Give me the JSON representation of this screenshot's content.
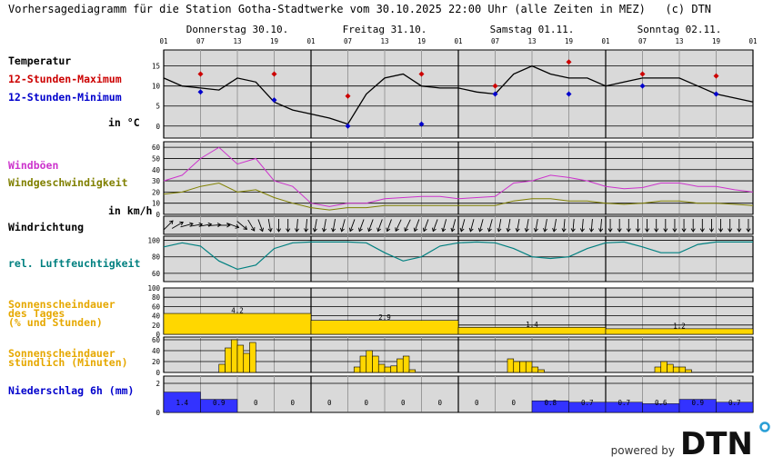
{
  "header": {
    "title": "Vorhersagediagramm für die Station Gotha-Stadtwerke vom 30.10.2025 22:00 Uhr (alle Zeiten in MEZ)   (c) DTN"
  },
  "days": [
    "Donnerstag 30.10.",
    "Freitag 31.10.",
    "Samstag 01.11.",
    "Sonntag 02.11."
  ],
  "hour_ticks": [
    "01",
    "07",
    "13",
    "19",
    "01",
    "07",
    "13",
    "19",
    "01",
    "07",
    "13",
    "19",
    "01",
    "07",
    "13",
    "19",
    "01"
  ],
  "labels": {
    "temperature": "Temperatur",
    "tmax": "12-Stunden-Maximum",
    "tmin": "12-Stunden-Minimum",
    "temp_unit": "in °C",
    "gusts": "Windböen",
    "windspeed": "Windgeschwindigkeit",
    "wind_unit": "in km/h",
    "winddir": "Windrichtung",
    "humidity": "rel. Luftfeuchtigkeit",
    "sun_day_1": "Sonnenscheindauer",
    "sun_day_2": "des Tages",
    "sun_day_3": "(% und Stunden)",
    "sun_hour_1": "Sonnenscheindauer",
    "sun_hour_2": "stündlich (Minuten)",
    "precip": "Niederschlag 6h (mm)"
  },
  "colors": {
    "plot_bg": "#d9d9d9",
    "temp": "#000000",
    "tmax": "#cc0000",
    "tmin": "#0000cc",
    "gust": "#cc33cc",
    "wind": "#808000",
    "humidity": "#008080",
    "sun": "#ffd700",
    "sun_label": "#e6a800",
    "precip": "#3333ff"
  },
  "chart_data": {
    "type": "line",
    "temperature": {
      "ylim": [
        -3,
        19
      ],
      "yticks": [
        0,
        5,
        10,
        15
      ],
      "x_hours": [
        0,
        3,
        6,
        9,
        12,
        15,
        18,
        21,
        24,
        27,
        30,
        33,
        36,
        39,
        42,
        45,
        48,
        51,
        54,
        57,
        60,
        63,
        66,
        69,
        72,
        75,
        78,
        81,
        84,
        87,
        90,
        93,
        96
      ],
      "values": [
        12,
        10,
        9.5,
        9,
        12,
        11,
        6,
        4,
        3,
        2,
        0.5,
        8,
        12,
        13,
        10,
        9.5,
        9.5,
        8.5,
        8,
        13,
        15,
        13,
        12,
        12,
        10,
        11,
        12,
        12,
        12,
        10,
        8,
        7,
        6
      ],
      "max_points": [
        {
          "h": 6,
          "v": 13
        },
        {
          "h": 18,
          "v": 13
        },
        {
          "h": 30,
          "v": 7.5
        },
        {
          "h": 42,
          "v": 13
        },
        {
          "h": 54,
          "v": 10
        },
        {
          "h": 66,
          "v": 16
        },
        {
          "h": 78,
          "v": 13
        },
        {
          "h": 90,
          "v": 12.5
        }
      ],
      "min_points": [
        {
          "h": 6,
          "v": 8.5
        },
        {
          "h": 18,
          "v": 6.5
        },
        {
          "h": 30,
          "v": 0
        },
        {
          "h": 42,
          "v": 0.5
        },
        {
          "h": 54,
          "v": 8
        },
        {
          "h": 66,
          "v": 8
        },
        {
          "h": 78,
          "v": 10
        },
        {
          "h": 90,
          "v": 8
        }
      ]
    },
    "wind": {
      "ylim": [
        0,
        65
      ],
      "yticks": [
        0,
        10,
        20,
        30,
        40,
        50,
        60
      ],
      "x_hours": [
        0,
        3,
        6,
        9,
        12,
        15,
        18,
        21,
        24,
        27,
        30,
        33,
        36,
        39,
        42,
        45,
        48,
        51,
        54,
        57,
        60,
        63,
        66,
        69,
        72,
        75,
        78,
        81,
        84,
        87,
        90,
        93,
        96
      ],
      "gusts": [
        30,
        35,
        50,
        60,
        45,
        50,
        30,
        25,
        10,
        7,
        10,
        10,
        14,
        15,
        16,
        16,
        14,
        15,
        16,
        28,
        30,
        35,
        33,
        30,
        25,
        23,
        24,
        28,
        28,
        25,
        25,
        22,
        20
      ],
      "speed": [
        18,
        20,
        25,
        28,
        20,
        22,
        15,
        10,
        6,
        4,
        6,
        6,
        8,
        8,
        8,
        8,
        8,
        8,
        8,
        12,
        14,
        14,
        12,
        12,
        10,
        9,
        10,
        12,
        12,
        10,
        10,
        9,
        8
      ]
    },
    "wind_direction_deg": [
      45,
      60,
      75,
      80,
      80,
      85,
      90,
      110,
      130,
      150,
      160,
      170,
      180,
      180,
      185,
      185,
      190,
      190,
      190,
      195,
      200,
      200,
      200,
      200,
      200,
      205,
      205,
      200,
      200,
      200,
      195,
      195,
      195,
      195,
      195,
      195,
      190,
      190,
      190,
      190,
      190,
      190,
      190,
      185,
      185,
      185,
      185,
      185,
      180,
      180,
      180,
      180,
      180,
      180,
      180,
      180,
      180,
      180,
      180,
      180,
      180,
      180,
      180,
      180
    ],
    "humidity": {
      "ylim": [
        50,
        105
      ],
      "yticks": [
        60,
        80,
        100
      ],
      "x_hours": [
        0,
        3,
        6,
        9,
        12,
        15,
        18,
        21,
        24,
        27,
        30,
        33,
        36,
        39,
        42,
        45,
        48,
        51,
        54,
        57,
        60,
        63,
        66,
        69,
        72,
        75,
        78,
        81,
        84,
        87,
        90,
        93,
        96
      ],
      "values": [
        92,
        97,
        93,
        75,
        65,
        70,
        90,
        97,
        98,
        98,
        98,
        97,
        85,
        75,
        80,
        93,
        97,
        98,
        97,
        90,
        80,
        78,
        80,
        90,
        97,
        98,
        92,
        85,
        85,
        95,
        98,
        98,
        98
      ]
    },
    "sun_daily": {
      "ylim": [
        0,
        100
      ],
      "yticks": [
        0,
        20,
        40,
        60,
        80,
        100
      ],
      "percent": [
        45,
        30,
        15,
        12
      ],
      "hours": [
        "4.2",
        "2.9",
        "1.4",
        "1.2"
      ]
    },
    "sun_hourly": {
      "ylim": [
        0,
        65
      ],
      "yticks": [
        0,
        20,
        40,
        60
      ],
      "bars": [
        {
          "h": 9,
          "v": 15
        },
        {
          "h": 10,
          "v": 45
        },
        {
          "h": 11,
          "v": 60
        },
        {
          "h": 12,
          "v": 50
        },
        {
          "h": 13,
          "v": 35
        },
        {
          "h": 14,
          "v": 55
        },
        {
          "h": 31,
          "v": 10
        },
        {
          "h": 32,
          "v": 30
        },
        {
          "h": 33,
          "v": 40
        },
        {
          "h": 34,
          "v": 30
        },
        {
          "h": 35,
          "v": 15
        },
        {
          "h": 36,
          "v": 10
        },
        {
          "h": 37,
          "v": 12
        },
        {
          "h": 38,
          "v": 25
        },
        {
          "h": 39,
          "v": 30
        },
        {
          "h": 40,
          "v": 5
        },
        {
          "h": 56,
          "v": 25
        },
        {
          "h": 57,
          "v": 20
        },
        {
          "h": 58,
          "v": 20
        },
        {
          "h": 59,
          "v": 20
        },
        {
          "h": 60,
          "v": 10
        },
        {
          "h": 61,
          "v": 5
        },
        {
          "h": 80,
          "v": 10
        },
        {
          "h": 81,
          "v": 20
        },
        {
          "h": 82,
          "v": 15
        },
        {
          "h": 83,
          "v": 10
        },
        {
          "h": 84,
          "v": 10
        },
        {
          "h": 85,
          "v": 5
        }
      ]
    },
    "precip_6h": {
      "ylim": [
        0,
        2.5
      ],
      "yticks": [
        0,
        2
      ],
      "values": [
        1.4,
        0.9,
        0,
        0,
        0,
        0,
        0,
        0,
        0,
        0,
        0.8,
        0.7,
        0.7,
        0.6,
        0.9,
        0.7
      ],
      "labels": [
        "1.4",
        "0.9",
        "0",
        "0",
        "0",
        "0",
        "0",
        "0",
        "0",
        "0",
        "0.8",
        "0.7",
        "0.7",
        "0.6",
        "0.9",
        "0.7"
      ]
    }
  },
  "footer": {
    "powered_by": "powered by",
    "logo_text": "DTN"
  }
}
